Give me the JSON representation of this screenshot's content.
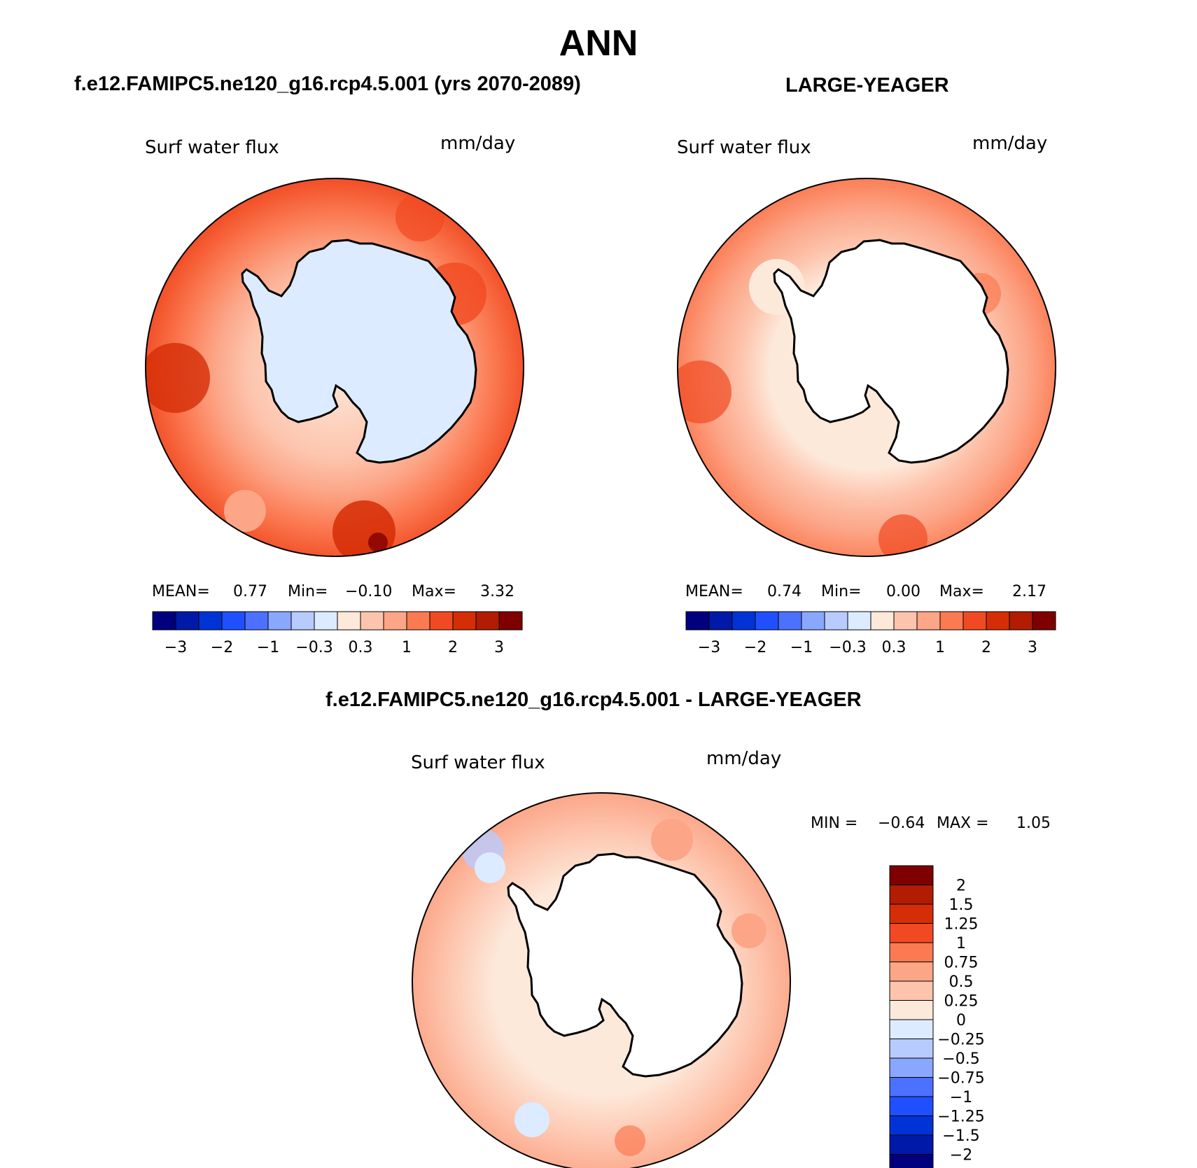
{
  "header": {
    "season": "ANN",
    "test_case": "f.e12.FAMIPC5.ne120_g16.rcp4.5.001 (yrs 2070-2089)",
    "reference": "LARGE-YEAGER",
    "difference": "f.e12.FAMIPC5.ne120_g16.rcp4.5.001 - LARGE-YEAGER"
  },
  "panels": {
    "test": {
      "variable": "Surf water flux",
      "units": "mm/day",
      "mean_label": "MEAN=",
      "mean": "0.77",
      "min_label": "Min=",
      "min": "−0.10",
      "max_label": "Max=",
      "max": "3.32"
    },
    "reference": {
      "variable": "Surf water flux",
      "units": "mm/day",
      "mean_label": "MEAN=",
      "mean": "0.74",
      "min_label": "Min=",
      "min": "0.00",
      "max_label": "Max=",
      "max": "2.17"
    },
    "difference": {
      "variable": "Surf water flux",
      "units": "mm/day",
      "min_label": "MIN =",
      "min": "−0.64",
      "max_label": "MAX =",
      "max": "1.05"
    }
  },
  "colorbar_main": {
    "colors": [
      "#00007f",
      "#0019a8",
      "#0033d6",
      "#1f4fff",
      "#4c70ff",
      "#8aa7ff",
      "#b8cbff",
      "#dcebff",
      "#fde9da",
      "#fdc4ad",
      "#fca587",
      "#fb7a52",
      "#f14a22",
      "#d52d06",
      "#b21c00",
      "#7f0000"
    ],
    "ticks": [
      "−3",
      "−2",
      "−1",
      "−0.3",
      "0.3",
      "1",
      "2",
      "3"
    ]
  },
  "colorbar_diff": {
    "colors": [
      "#7f0000",
      "#b21c00",
      "#d52d06",
      "#f14a22",
      "#fb7a52",
      "#fca587",
      "#fdc4ad",
      "#fde9da",
      "#dcebff",
      "#b8cbff",
      "#8aa7ff",
      "#4c70ff",
      "#1f4fff",
      "#0033d6",
      "#0019a8",
      "#00007f"
    ],
    "ticks": [
      "2",
      "1.5",
      "1.25",
      "1",
      "0.75",
      "0.5",
      "0.25",
      "0",
      "−0.25",
      "−0.5",
      "−0.75",
      "−1",
      "−1.25",
      "−1.5",
      "−2"
    ]
  }
}
